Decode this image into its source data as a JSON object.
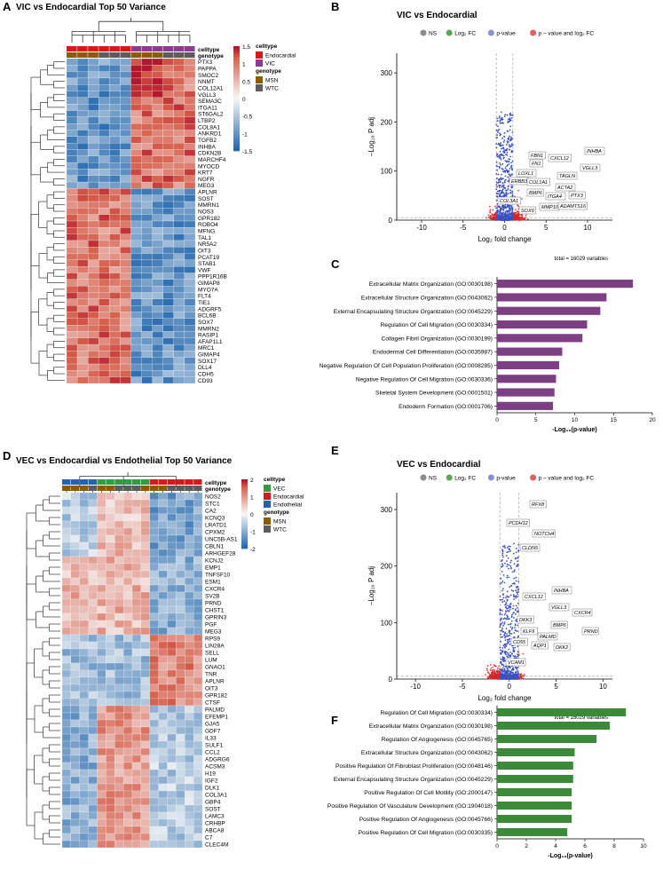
{
  "panels": {
    "A": {
      "letter": "A",
      "title": "VIC vs Endocardial Top 50 Variance",
      "annotation_rows": [
        "celltype",
        "genotype"
      ],
      "legend": {
        "scale_ticks": [
          "1.5",
          "1",
          "0.5",
          "0",
          "-0.5",
          "-1",
          "-1.5"
        ],
        "celltype_title": "celltype",
        "celltype_items": [
          {
            "label": "Endocardial",
            "color": "#d7191c"
          },
          {
            "label": "VIC",
            "color": "#8e3b91"
          }
        ],
        "genotype_title": "genotype",
        "genotype_items": [
          {
            "label": "MSN",
            "color": "#8c5a00"
          },
          {
            "label": "WTC",
            "color": "#5c5c5c"
          }
        ]
      },
      "celltype_cols": [
        "E",
        "E",
        "E",
        "E",
        "E",
        "E",
        "V",
        "V",
        "V",
        "V",
        "V",
        "V"
      ],
      "genotype_cols": [
        "M",
        "M",
        "M",
        "W",
        "W",
        "W",
        "M",
        "M",
        "M",
        "W",
        "W",
        "W"
      ],
      "genes": [
        "PTX3",
        "PAPPA",
        "SMOC2",
        "NNMT",
        "COL12A1",
        "VGLL3",
        "SEMA3C",
        "ITGA11",
        "ST6GAL2",
        "LTBP2",
        "COL8A1",
        "ANKRD1",
        "TGFB2",
        "INHBA",
        "CDKN2B",
        "MARCHF4",
        "MYOCD",
        "KRT7",
        "NGFR",
        "MEG3",
        "APLNR",
        "SOST",
        "MMRN1",
        "NOS3",
        "GPR182",
        "ROBO4",
        "MFNG",
        "TAL1",
        "NR5A2",
        "OIT3",
        "PCAT19",
        "STAB1",
        "VWF",
        "PPP1R16B",
        "GIMAP8",
        "MYO7A",
        "FLT4",
        "TIE1",
        "ADGRF5",
        "BCL6B",
        "SOX7",
        "MMRN2",
        "RASIP1",
        "AFAP1L1",
        "MRC1",
        "GIMAP4",
        "SOX17",
        "DLL4",
        "CDH5",
        "CD93"
      ]
    },
    "B": {
      "letter": "B",
      "title": "VIC vs Endocardial",
      "legend": [
        "NS",
        "Log₂ FC",
        "p-value",
        "p – value and log₂ FC"
      ],
      "legend_colors": [
        "#8c8c8c",
        "#5aa55a",
        "#8c8fd8",
        "#e06060"
      ],
      "ylabel": "–Log₁₀ P adj",
      "xlabel": "Log₂ fold change",
      "xticks": [
        "-10",
        "-5",
        "0",
        "5",
        "10"
      ],
      "yticks": [
        "0",
        "100",
        "200",
        "300"
      ],
      "total": "total = 16029 variables",
      "labels": [
        "FBN1",
        "FN1",
        "LOXL1",
        "ERBB3",
        "COL1A1",
        "COL3A1",
        "BMP6",
        "SOX9",
        "CXCL12",
        "TAGLN",
        "ACTA2",
        "ITGA4",
        "PTX3",
        "MMP10",
        "ADAMTS16",
        "INHBA",
        "VGLL3"
      ]
    },
    "C": {
      "letter": "C",
      "xlabel": "-Log₁₀(p-value)",
      "xticks": [
        "0",
        "5",
        "10",
        "15",
        "20"
      ],
      "chart_data": {
        "type": "bar",
        "orientation": "horizontal",
        "xlabel": "-Log10(p-value)",
        "xlim": [
          0,
          20
        ],
        "categories": [
          "Extracellular Matrix Organization (GO:0030198)",
          "Extracellular Structure Organization (GO:0043062)",
          "External Encapsulating Structure Organization (GO:0045229)",
          "Regulation Of Cell Migration (GO:0030334)",
          "Collagen Fibril Organization (GO:0030199)",
          "Endodermal Cell Differentiation (GO:0035987)",
          "Negative Regulation Of Cell Population Proliferation (GO:0008285)",
          "Negative Regulation Of Cell Migration (GO:0030336)",
          "Skeletal System Development (GO:0001501)",
          "Endoderm Formation (GO:0001706)"
        ],
        "values": [
          17.5,
          14.1,
          13.3,
          11.6,
          11.0,
          8.4,
          8.0,
          7.6,
          7.4,
          7.2
        ],
        "color": "#7b3f82"
      }
    },
    "D": {
      "letter": "D",
      "title": "VEC vs Endocardial vs Endothelial Top 50 Variance",
      "annotation_rows": [
        "celltype",
        "genotype"
      ],
      "legend": {
        "scale_ticks": [
          "2",
          "1",
          "0",
          "-1",
          "-2"
        ],
        "celltype_title": "celltype",
        "celltype_items": [
          {
            "label": "VEC",
            "color": "#2e9e3e"
          },
          {
            "label": "Endocardial",
            "color": "#d7191c"
          },
          {
            "label": "Endothelial",
            "color": "#2166ac"
          }
        ],
        "genotype_title": "genotype",
        "genotype_items": [
          {
            "label": "MSN",
            "color": "#8c5a00"
          },
          {
            "label": "WTC",
            "color": "#5c5c5c"
          }
        ]
      },
      "celltype_cols": [
        "B",
        "B",
        "B",
        "B",
        "G",
        "G",
        "G",
        "G",
        "G",
        "G",
        "R",
        "R",
        "R",
        "R",
        "R",
        "R"
      ],
      "genotype_cols": [
        "M",
        "M",
        "M",
        "W",
        "M",
        "M",
        "W",
        "W",
        "W",
        "M",
        "M",
        "M",
        "W",
        "W",
        "W",
        "W"
      ],
      "genes": [
        "NOS2",
        "STC1",
        "CA2",
        "KCNQ3",
        "LRATD1",
        "CPXM2",
        "UNC5B-AS1",
        "CBLN1",
        "ARHGEF28",
        "KCNJ2",
        "EMP1",
        "TNFSF10",
        "ESM1",
        "CXCR4",
        "SV2B",
        "PRND",
        "CHST1",
        "GPRIN3",
        "PGF",
        "MEG3",
        "RPS9",
        "LIN28A",
        "SELL",
        "LUM",
        "GNAO1",
        "TNR",
        "APLNR",
        "OIT3",
        "GPR182",
        "CTSF",
        "PALMD",
        "EFEMP1",
        "GJA5",
        "GDF7",
        "IL33",
        "SULF1",
        "CCL2",
        "ADGRG6",
        "ACSM3",
        "H19",
        "IGF2",
        "DLK1",
        "COL3A1",
        "GBP4",
        "SOST",
        "LAMC3",
        "CRHBP",
        "ABCA8",
        "C7",
        "CLEC4M"
      ]
    },
    "E": {
      "letter": "E",
      "title": "VEC vs Endocardial",
      "legend": [
        "NS",
        "Log₂ FC",
        "p-value",
        "p – value and log₂ FC"
      ],
      "legend_colors": [
        "#8c8c8c",
        "#5aa55a",
        "#8c8fd8",
        "#e06060"
      ],
      "ylabel": "–Log₁₀ P adj",
      "xlabel": "Log₂ fold change",
      "xticks": [
        "-10",
        "-5",
        "0",
        "5",
        "10"
      ],
      "yticks": [
        "0",
        "100",
        "200",
        "300"
      ],
      "total": "total = 16029 variables",
      "labels": [
        "RFX8",
        "PCDH12",
        "NOTCH4",
        "CLDN5",
        "CXCL12",
        "INHBA",
        "VGLL3",
        "CXCR4",
        "PRND",
        "DKK3",
        "KLF9",
        "BMP6",
        "PALMD",
        "CD55",
        "AQP1",
        "DKK2",
        "VCAM1"
      ]
    },
    "F": {
      "letter": "F",
      "xlabel": "-Log₁₀(p-value)",
      "xticks": [
        "0",
        "2",
        "4",
        "6",
        "8",
        "10"
      ],
      "chart_data": {
        "type": "bar",
        "orientation": "horizontal",
        "xlabel": "-Log10(p-value)",
        "xlim": [
          0,
          10
        ],
        "categories": [
          "Regulation Of Cell Migration (GO:0030334)",
          "Extracellular Matrix Organization (GO:0030198)",
          "Regulation Of Angiogenesis (GO:0045765)",
          "Extracellular Structure Organization (GO:0043062)",
          "Positive Regulation Of Fibroblast Proliferation (GO:0048146)",
          "External Encapsulating Structure Organization (GO:0045229)",
          "Positive Regulation Of Cell Motility (GO:2000147)",
          "Positive Regulation Of Vasculature Development (GO:1904018)",
          "Positive Regulation Of Angiogenesis (GO:0045766)",
          "Positive Regulation Of Cell Migration (GO:0030335)"
        ],
        "values": [
          8.8,
          7.7,
          6.8,
          5.3,
          5.2,
          5.2,
          5.1,
          5.1,
          5.1,
          4.8
        ],
        "color": "#3a8a3a"
      }
    }
  }
}
